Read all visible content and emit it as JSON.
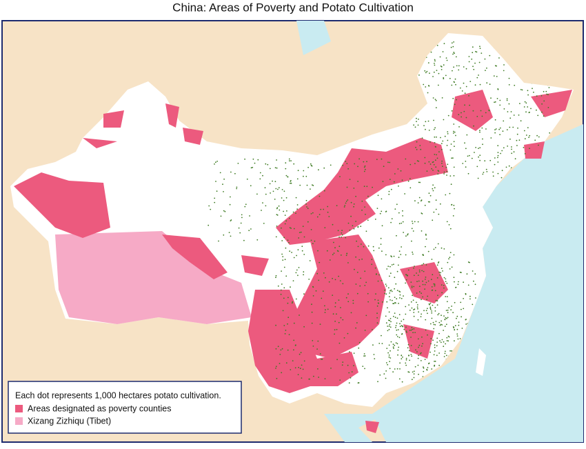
{
  "title": "China: Areas of Poverty and Potato Cultivation",
  "legend": {
    "note": "Each dot represents 1,000 hectares potato cultivation.",
    "items": [
      {
        "label": "Areas designated as poverty counties"
      },
      {
        "label": "Xizang Zizhiqu (Tibet)"
      }
    ]
  }
}
